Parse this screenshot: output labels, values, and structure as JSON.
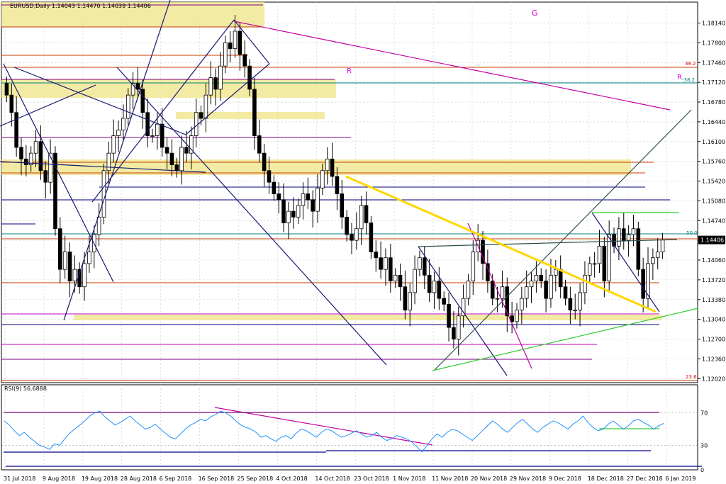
{
  "header": {
    "symbol_line": "EURUSD,Daily  1.14043 1.14470 1.14039 1.14406"
  },
  "rsi_panel": {
    "label": "RSI(9) 56.6888",
    "levels": [
      70,
      30,
      0
    ]
  },
  "annotations": {
    "g_label": "G",
    "r_left": "R",
    "r_right": "R",
    "fib_382_top": "38.2",
    "fib_382_mid": "-38.2",
    "fib_50": "50.0",
    "fib_236": "23.6"
  },
  "chart_data": {
    "type": "candlestick",
    "symbol": "EURUSD",
    "timeframe": "Daily",
    "ohlc_last": {
      "open": 1.14043,
      "high": 1.1447,
      "low": 1.14039,
      "close": 1.14406
    },
    "current_price_label": "1.14406",
    "y_ticks": [
      "1.18140",
      "1.17800",
      "1.17460",
      "1.17120",
      "1.16780",
      "1.16440",
      "1.16100",
      "1.15760",
      "1.15420",
      "1.15080",
      "1.14740",
      "1.14400",
      "1.14060",
      "1.13720",
      "1.13380",
      "1.13040",
      "1.12700",
      "1.12360",
      "1.12020"
    ],
    "ylim": [
      1.1195,
      1.185
    ],
    "x_labels": [
      "31 Jul 2018",
      "9 Aug 2018",
      "19 Aug 2018",
      "28 Aug 2018",
      "6 Sep 2018",
      "16 Sep 2018",
      "25 Sep 2018",
      "4 Oct 2018",
      "14 Oct 2018",
      "23 Oct 2018",
      "1 Nov 2018",
      "11 Nov 2018",
      "20 Nov 2018",
      "29 Nov 2018",
      "9 Dec 2018",
      "18 Dec 2018",
      "27 Dec 2018",
      "6 Jan 2019"
    ],
    "closes": [
      1.169,
      1.166,
      1.16,
      1.158,
      1.157,
      1.159,
      1.161,
      1.156,
      1.154,
      1.159,
      1.146,
      1.139,
      1.142,
      1.137,
      1.139,
      1.136,
      1.14,
      1.142,
      1.145,
      1.148,
      1.156,
      1.159,
      1.162,
      1.163,
      1.165,
      1.169,
      1.171,
      1.17,
      1.166,
      1.162,
      1.162,
      1.164,
      1.16,
      1.159,
      1.157,
      1.156,
      1.16,
      1.159,
      1.162,
      1.166,
      1.165,
      1.169,
      1.172,
      1.17,
      1.174,
      1.178,
      1.177,
      1.18,
      1.176,
      1.174,
      1.17,
      1.162,
      1.159,
      1.156,
      1.154,
      1.152,
      1.151,
      1.147,
      1.149,
      1.148,
      1.15,
      1.152,
      1.151,
      1.149,
      1.153,
      1.156,
      1.158,
      1.155,
      1.152,
      1.148,
      1.145,
      1.144,
      1.146,
      1.15,
      1.147,
      1.142,
      1.141,
      1.139,
      1.141,
      1.137,
      1.138,
      1.136,
      1.132,
      1.135,
      1.139,
      1.141,
      1.138,
      1.135,
      1.137,
      1.134,
      1.133,
      1.129,
      1.127,
      1.131,
      1.134,
      1.137,
      1.142,
      1.144,
      1.14,
      1.137,
      1.134,
      1.134,
      1.136,
      1.131,
      1.13,
      1.132,
      1.134,
      1.136,
      1.137,
      1.138,
      1.137,
      1.134,
      1.138,
      1.139,
      1.136,
      1.134,
      1.132,
      1.132,
      1.135,
      1.138,
      1.14,
      1.14,
      1.143,
      1.137,
      1.145,
      1.143,
      1.146,
      1.144,
      1.145,
      1.146,
      1.139,
      1.134,
      1.14,
      1.141,
      1.142,
      1.14406
    ],
    "rsi": [
      60,
      55,
      48,
      42,
      46,
      40,
      35,
      30,
      28,
      25,
      32,
      30,
      38,
      45,
      50,
      55,
      60,
      66,
      70,
      72,
      65,
      60,
      55,
      58,
      62,
      66,
      60,
      55,
      50,
      52,
      56,
      50,
      45,
      40,
      38,
      44,
      50,
      55,
      58,
      62,
      60,
      65,
      68,
      72,
      70,
      66,
      60,
      55,
      52,
      50,
      46,
      40,
      42,
      38,
      35,
      40,
      42,
      38,
      45,
      50,
      48,
      44,
      40,
      46,
      50,
      48,
      44,
      40,
      42,
      45,
      48,
      44,
      40,
      42,
      46,
      40,
      36,
      38,
      42,
      40,
      38,
      34,
      28,
      22,
      30,
      38,
      44,
      40,
      46,
      50,
      48,
      44,
      40,
      36,
      42,
      48,
      54,
      60,
      56,
      50,
      46,
      52,
      58,
      62,
      56,
      50,
      46,
      52,
      56,
      60,
      58,
      54,
      50,
      56,
      60,
      66,
      58,
      52,
      48,
      50,
      56,
      60,
      55,
      50,
      54,
      60,
      62,
      58,
      55,
      50,
      54,
      57
    ]
  }
}
